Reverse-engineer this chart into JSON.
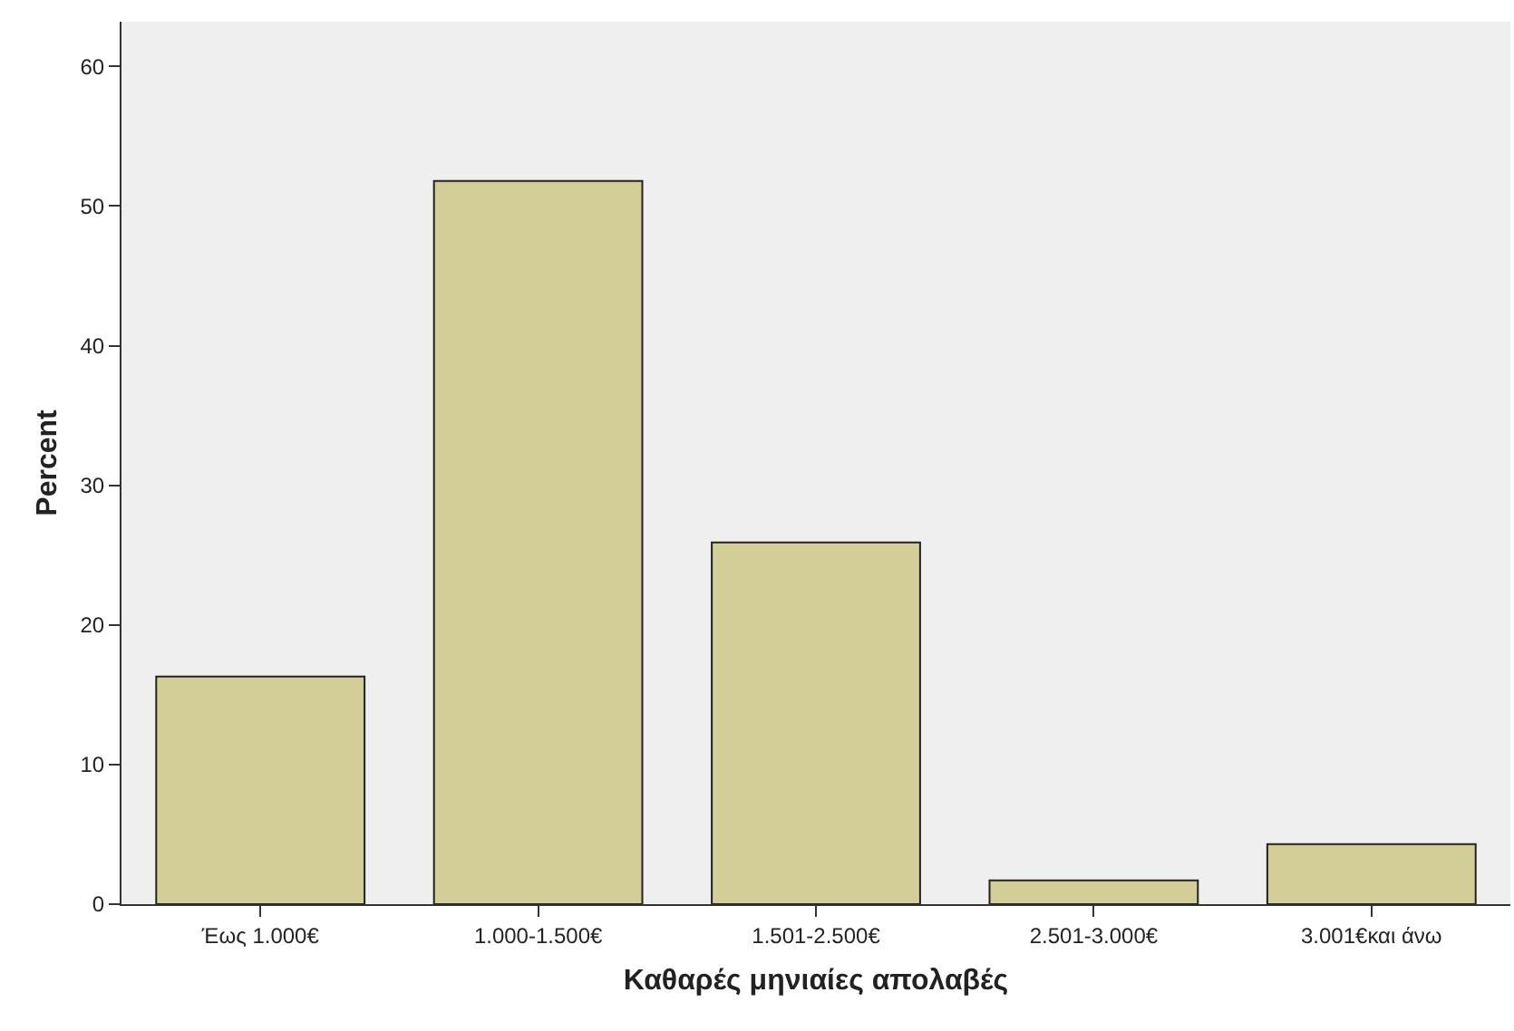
{
  "chart_data": {
    "type": "bar",
    "xlabel": "Καθαρές μηνιαίες απολαβές",
    "ylabel": "Percent",
    "categories": [
      "Έως 1.000€",
      "1.000-1.500€",
      "1.501-2.500€",
      "2.501-3.000€",
      "3.001€και άνω"
    ],
    "values": [
      16.3,
      51.8,
      25.9,
      1.7,
      4.3
    ],
    "color": "#d3ce98",
    "ylim": [
      0,
      63.2
    ],
    "yticks": [
      0,
      10,
      20,
      30,
      40,
      50,
      60
    ],
    "grid": false
  }
}
